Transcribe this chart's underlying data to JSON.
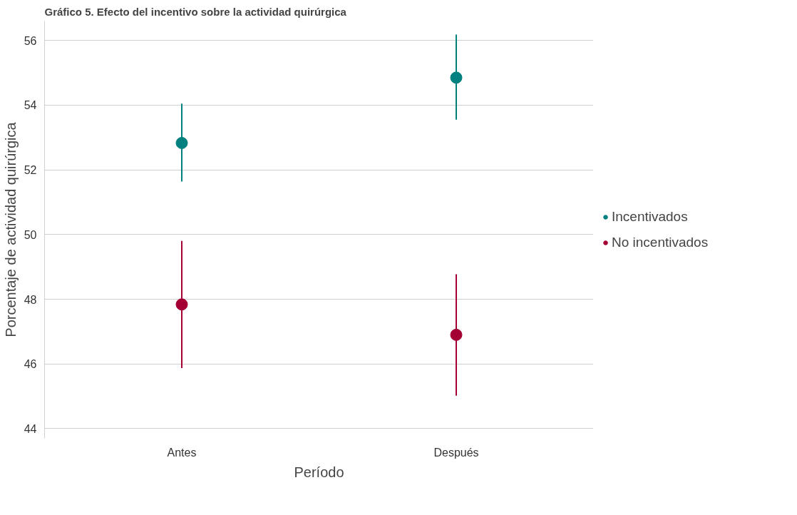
{
  "chart_data": {
    "type": "scatter",
    "title": "Gráfico 5. Efecto del incentivo sobre la actividad quirúrgica",
    "xlabel": "Período",
    "ylabel": "Porcentaje de actividad quirúrgica",
    "categories": [
      "Antes",
      "Después"
    ],
    "series": [
      {
        "name": "Incentivados",
        "color": "#00807f",
        "values": [
          52.83,
          54.85
        ],
        "errors": [
          [
            51.64,
            54.05
          ],
          [
            53.55,
            56.18
          ]
        ]
      },
      {
        "name": "No incentivados",
        "color": "#a50034",
        "values": [
          47.84,
          46.9
        ],
        "errors": [
          [
            45.87,
            49.8
          ],
          [
            45.02,
            48.77
          ]
        ]
      }
    ],
    "ylim": [
      43.7,
      56.6
    ],
    "yticks": [
      44,
      46,
      48,
      50,
      52,
      54,
      56
    ],
    "grid": "y",
    "legend": "right",
    "marker": "circle"
  }
}
